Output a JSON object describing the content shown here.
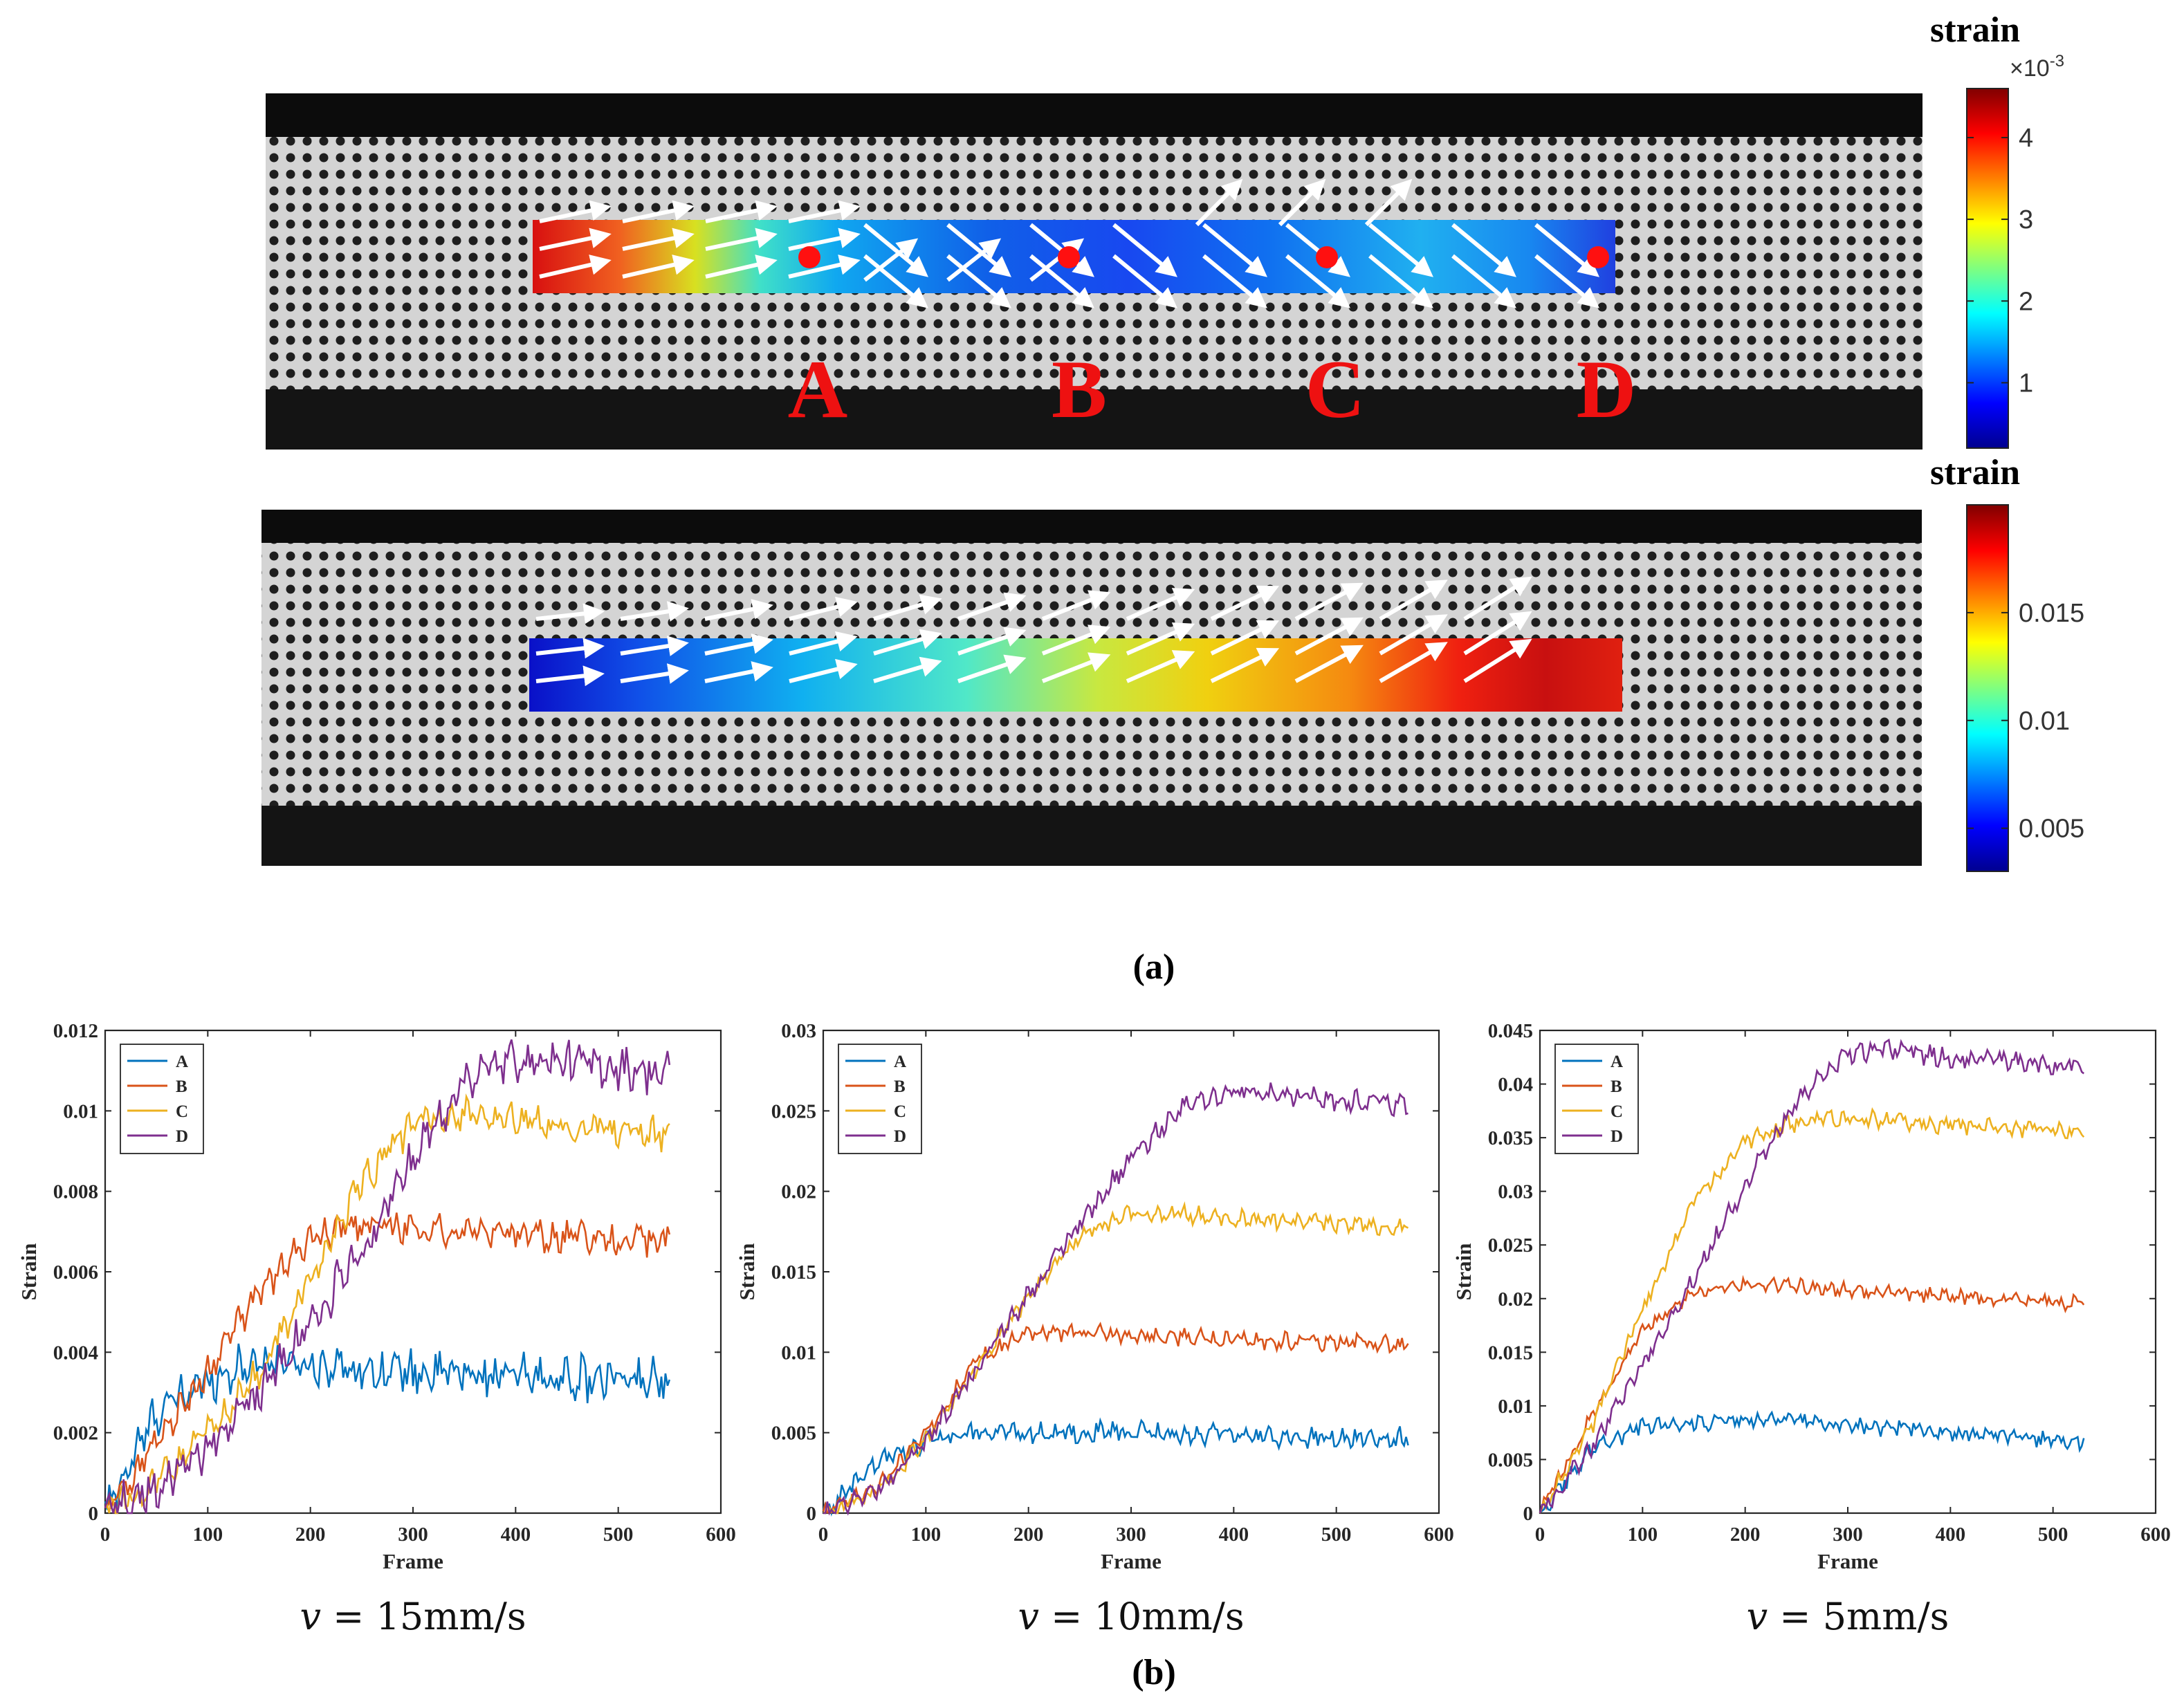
{
  "figure": {
    "panel_a_caption": "(a)",
    "panel_b_caption": "(b)",
    "strain_field_top": {
      "colorbar_title": "strain",
      "colorbar_exponent": "×10",
      "colorbar_exponent_power": "-3",
      "colorbar_ticks": [
        "4",
        "3",
        "2",
        "1"
      ],
      "colorbar_tick_values": [
        4,
        3,
        2,
        1
      ],
      "colorbar_range": [
        0.2,
        4.6
      ],
      "points": [
        "A",
        "B",
        "C",
        "D"
      ]
    },
    "strain_field_bottom": {
      "colorbar_title": "strain",
      "colorbar_ticks": [
        "0.015",
        "0.01",
        "0.005"
      ],
      "colorbar_tick_values": [
        0.015,
        0.01,
        0.005
      ],
      "colorbar_range": [
        0.003,
        0.02
      ]
    }
  },
  "chart_data": [
    {
      "type": "line",
      "caption": "v = 15mm/s",
      "caption_var": "v",
      "caption_rest": " = 15mm/s",
      "xlabel": "Frame",
      "ylabel": "Strain",
      "xlim": [
        0,
        600
      ],
      "ylim": [
        0,
        0.012
      ],
      "xticks": [
        "0",
        "100",
        "200",
        "300",
        "400",
        "500",
        "600"
      ],
      "yticks": [
        "0",
        "0.002",
        "0.004",
        "0.006",
        "0.008",
        "0.01",
        "0.012"
      ],
      "legend": "top-left",
      "frame_count": 550,
      "series": [
        {
          "name": "A",
          "color": "#0072BD",
          "x": [
            0,
            50,
            100,
            150,
            200,
            300,
            400,
            500,
            550
          ],
          "y": [
            0,
            0.0025,
            0.0033,
            0.0038,
            0.0037,
            0.0035,
            0.0034,
            0.0033,
            0.0033
          ],
          "noise": 0.0004
        },
        {
          "name": "B",
          "color": "#D95319",
          "x": [
            0,
            50,
            100,
            150,
            200,
            250,
            300,
            400,
            500,
            550
          ],
          "y": [
            0,
            0.0018,
            0.0035,
            0.0055,
            0.0068,
            0.0072,
            0.0071,
            0.0069,
            0.0068,
            0.0068
          ],
          "noise": 0.0003
        },
        {
          "name": "C",
          "color": "#EDB120",
          "x": [
            0,
            50,
            100,
            150,
            200,
            250,
            300,
            350,
            400,
            500,
            550
          ],
          "y": [
            0,
            0.0008,
            0.002,
            0.0035,
            0.0058,
            0.0082,
            0.0097,
            0.0099,
            0.0098,
            0.0095,
            0.0094
          ],
          "noise": 0.0003
        },
        {
          "name": "D",
          "color": "#7E2F8E",
          "x": [
            0,
            50,
            100,
            150,
            200,
            250,
            300,
            350,
            400,
            500,
            550
          ],
          "y": [
            0,
            0.0006,
            0.0016,
            0.003,
            0.0047,
            0.0066,
            0.0088,
            0.0108,
            0.0113,
            0.0111,
            0.0109
          ],
          "noise": 0.0004
        }
      ]
    },
    {
      "type": "line",
      "caption": "v = 10mm/s",
      "caption_var": "v",
      "caption_rest": " = 10mm/s",
      "xlabel": "Frame",
      "ylabel": "Strain",
      "xlim": [
        0,
        600
      ],
      "ylim": [
        0,
        0.03
      ],
      "xticks": [
        "0",
        "100",
        "200",
        "300",
        "400",
        "500",
        "600"
      ],
      "yticks": [
        "0",
        "0.005",
        "0.01",
        "0.015",
        "0.02",
        "0.025",
        "0.03"
      ],
      "legend": "top-left",
      "frame_count": 570,
      "series": [
        {
          "name": "A",
          "color": "#0072BD",
          "x": [
            0,
            50,
            100,
            150,
            200,
            300,
            400,
            500,
            570
          ],
          "y": [
            0,
            0.003,
            0.0045,
            0.005,
            0.005,
            0.005,
            0.0048,
            0.0047,
            0.0046
          ],
          "noise": 0.0005
        },
        {
          "name": "B",
          "color": "#D95319",
          "x": [
            0,
            50,
            100,
            150,
            200,
            250,
            300,
            400,
            500,
            570
          ],
          "y": [
            0,
            0.0015,
            0.005,
            0.0095,
            0.0112,
            0.0112,
            0.0111,
            0.0108,
            0.0106,
            0.0104
          ],
          "noise": 0.0004
        },
        {
          "name": "C",
          "color": "#EDB120",
          "x": [
            0,
            50,
            100,
            150,
            200,
            250,
            300,
            350,
            400,
            500,
            570
          ],
          "y": [
            0,
            0.0012,
            0.0045,
            0.009,
            0.0135,
            0.0172,
            0.0186,
            0.0186,
            0.0183,
            0.018,
            0.0178
          ],
          "noise": 0.0004
        },
        {
          "name": "D",
          "color": "#7E2F8E",
          "x": [
            0,
            50,
            100,
            150,
            200,
            250,
            300,
            350,
            400,
            450,
            500,
            570
          ],
          "y": [
            0,
            0.0013,
            0.0045,
            0.009,
            0.0135,
            0.018,
            0.022,
            0.0252,
            0.0261,
            0.026,
            0.0257,
            0.0254
          ],
          "noise": 0.0005
        }
      ]
    },
    {
      "type": "line",
      "caption": "v = 5mm/s",
      "caption_var": "v",
      "caption_rest": " = 5mm/s",
      "xlabel": "Frame",
      "ylabel": "Strain",
      "xlim": [
        0,
        600
      ],
      "ylim": [
        0,
        0.045
      ],
      "xticks": [
        "0",
        "100",
        "200",
        "300",
        "400",
        "500",
        "600"
      ],
      "yticks": [
        "0",
        "0.005",
        "0.01",
        "0.015",
        "0.02",
        "0.025",
        "0.03",
        "0.035",
        "0.04",
        "0.045"
      ],
      "legend": "top-left",
      "frame_count": 530,
      "series": [
        {
          "name": "A",
          "color": "#0072BD",
          "x": [
            0,
            50,
            100,
            150,
            200,
            250,
            300,
            400,
            530
          ],
          "y": [
            0,
            0.006,
            0.0082,
            0.0085,
            0.0086,
            0.0087,
            0.0083,
            0.0075,
            0.0067
          ],
          "noise": 0.0006
        },
        {
          "name": "B",
          "color": "#D95319",
          "x": [
            0,
            50,
            100,
            150,
            200,
            250,
            300,
            400,
            530
          ],
          "y": [
            0,
            0.009,
            0.017,
            0.0205,
            0.0213,
            0.0212,
            0.0208,
            0.0202,
            0.0195
          ],
          "noise": 0.0005
        },
        {
          "name": "C",
          "color": "#EDB120",
          "x": [
            0,
            50,
            100,
            150,
            200,
            250,
            300,
            350,
            400,
            530
          ],
          "y": [
            0,
            0.008,
            0.019,
            0.029,
            0.0345,
            0.0365,
            0.0368,
            0.0366,
            0.0362,
            0.0355
          ],
          "noise": 0.0006
        },
        {
          "name": "D",
          "color": "#7E2F8E",
          "x": [
            0,
            50,
            100,
            150,
            200,
            250,
            300,
            350,
            400,
            530
          ],
          "y": [
            0,
            0.006,
            0.014,
            0.022,
            0.0305,
            0.0385,
            0.043,
            0.0431,
            0.0425,
            0.0416
          ],
          "noise": 0.0007
        }
      ]
    }
  ]
}
